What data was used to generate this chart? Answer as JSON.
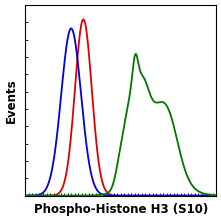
{
  "title": "",
  "xlabel": "Phospho-Histone H3 (S10)",
  "ylabel": "Events",
  "xlabel_fontsize": 8.5,
  "ylabel_fontsize": 8.5,
  "background_color": "#ffffff",
  "plot_bg_color": "#ffffff",
  "blue": {
    "peaks": [
      {
        "mean": 0.3,
        "std": 0.065,
        "amplitude": 0.92
      }
    ],
    "color": "#0000dd"
  },
  "red": {
    "peaks": [
      {
        "mean": 0.38,
        "std": 0.055,
        "amplitude": 0.97
      }
    ],
    "color": "#dd0000"
  },
  "green": {
    "peaks": [
      {
        "mean": 0.68,
        "std": 0.04,
        "amplitude": 0.58
      },
      {
        "mean": 0.72,
        "std": 0.018,
        "amplitude": 0.3
      },
      {
        "mean": 0.76,
        "std": 0.045,
        "amplitude": 0.62
      },
      {
        "mean": 0.88,
        "std": 0.09,
        "amplitude": 0.45
      },
      {
        "mean": 0.62,
        "std": 0.03,
        "amplitude": 0.18
      },
      {
        "mean": 0.95,
        "std": 0.06,
        "amplitude": 0.2
      }
    ],
    "color": "#007700"
  },
  "xlim": [
    0.0,
    1.25
  ],
  "ylim": [
    0.0,
    1.05
  ],
  "x_nticks": 55,
  "y_nticks": 12
}
